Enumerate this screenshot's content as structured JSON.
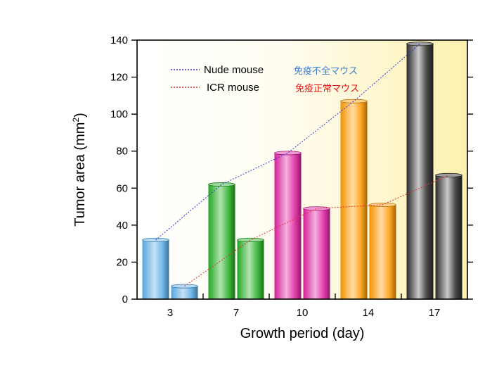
{
  "chart_data": {
    "type": "bar",
    "title": "",
    "xlabel": "Growth period (day)",
    "ylabel": "Tumor area (mm²)",
    "ylabel_main": "Tumor area (mm",
    "ylabel_sup": "2",
    "ylabel_close": ")",
    "ylim": [
      0,
      140
    ],
    "yticks": [
      0,
      20,
      40,
      60,
      80,
      100,
      120,
      140
    ],
    "categories": [
      "3",
      "7",
      "10",
      "14",
      "17"
    ],
    "series": [
      {
        "name": "Nude mouse",
        "name_jp": "免疫不全マウス",
        "line_color": "#3333dd",
        "jp_color": "#3a7fd0",
        "values": [
          32,
          62,
          79,
          107,
          138
        ]
      },
      {
        "name": "ICR mouse",
        "name_jp": "免疫正常マウス",
        "line_color": "#e03030",
        "jp_color": "#e01010",
        "values": [
          7,
          32,
          49,
          51,
          67
        ]
      }
    ],
    "bar_colors": [
      "#5aaee8",
      "#22b022",
      "#e020a0",
      "#ff9a00",
      "#2a2a2a"
    ],
    "legend_position": "top-left",
    "grid": false
  }
}
